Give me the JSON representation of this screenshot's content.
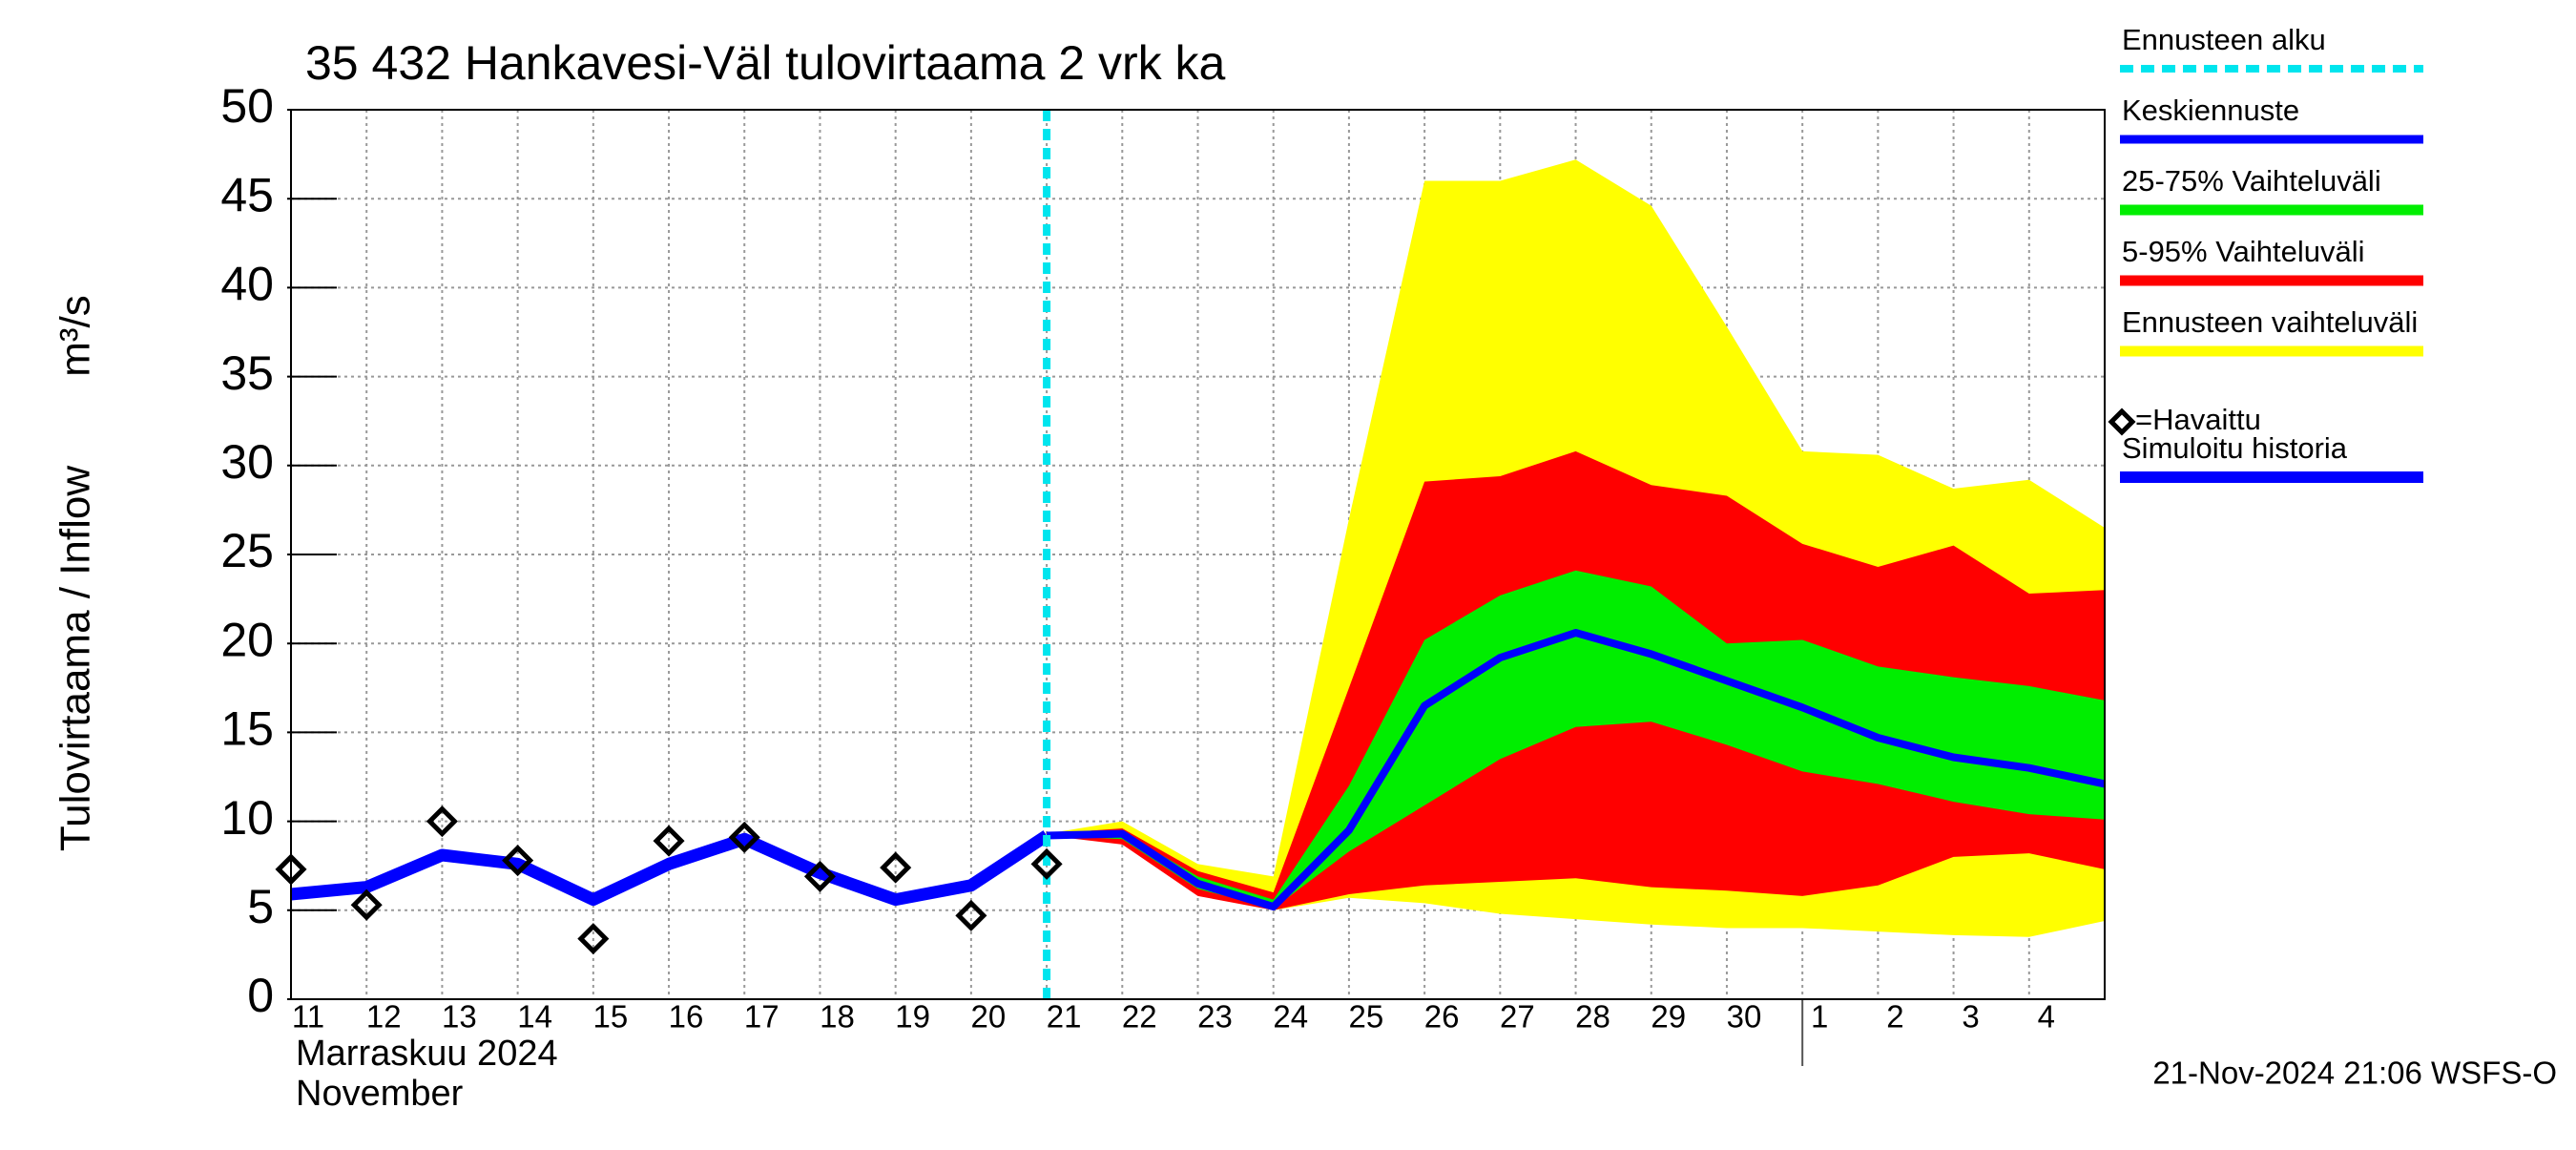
{
  "chart_data": {
    "type": "line",
    "title": "35 432 Hankavesi-Väl tulovirtaama 2 vrk ka",
    "y_label": "Tulovirtaama / Inflow",
    "y_unit": "m³/s",
    "month_labels": [
      "Marraskuu 2024",
      "November"
    ],
    "timestamp": "21-Nov-2024 21:06 WSFS-O",
    "categories": [
      "11",
      "12",
      "13",
      "14",
      "15",
      "16",
      "17",
      "18",
      "19",
      "20",
      "21",
      "22",
      "23",
      "24",
      "25",
      "26",
      "27",
      "28",
      "29",
      "30",
      "1",
      "2",
      "3",
      "4",
      null
    ],
    "ylim": [
      0,
      50
    ],
    "yticks": [
      0,
      5,
      10,
      15,
      20,
      25,
      30,
      35,
      40,
      45,
      50
    ],
    "grid": true,
    "forecast_start": {
      "name": "Ennusteen alku",
      "color": "#00e5ee",
      "index": 10
    },
    "bands": [
      {
        "name": "Ennusteen vaihteluväli",
        "color": "#ffff00",
        "upper": [
          null,
          null,
          null,
          null,
          null,
          null,
          null,
          null,
          null,
          null,
          9.3,
          10.0,
          7.6,
          6.9,
          27,
          46,
          46,
          47.2,
          44.6,
          37.8,
          30.8,
          30.6,
          28.7,
          29.2,
          26.5
        ],
        "lower": [
          null,
          null,
          null,
          null,
          null,
          null,
          null,
          null,
          null,
          null,
          9.2,
          8.9,
          6.0,
          5.0,
          5.7,
          5.4,
          4.8,
          4.5,
          4.2,
          4.0,
          4.0,
          3.8,
          3.6,
          3.5,
          4.4
        ]
      },
      {
        "name": "5-95% Vaihteluväli",
        "color": "#ff0000",
        "upper": [
          null,
          null,
          null,
          null,
          null,
          null,
          null,
          null,
          null,
          null,
          9.3,
          9.6,
          7.2,
          6.0,
          17.5,
          29.1,
          29.4,
          30.8,
          28.9,
          28.3,
          25.6,
          24.3,
          25.5,
          22.8,
          23.0
        ],
        "lower": [
          null,
          null,
          null,
          null,
          null,
          null,
          null,
          null,
          null,
          null,
          9.2,
          8.7,
          5.8,
          5.0,
          5.9,
          6.4,
          6.6,
          6.8,
          6.3,
          6.1,
          5.8,
          6.4,
          8.0,
          8.2,
          7.3
        ]
      },
      {
        "name": "25-75% Vaihteluväli",
        "color": "#00ee00",
        "upper": [
          null,
          null,
          null,
          null,
          null,
          null,
          null,
          null,
          null,
          null,
          9.3,
          9.4,
          6.9,
          5.6,
          12.0,
          20.2,
          22.7,
          24.1,
          23.2,
          20.0,
          20.2,
          18.7,
          18.1,
          17.6,
          16.8
        ],
        "lower": [
          null,
          null,
          null,
          null,
          null,
          null,
          null,
          null,
          null,
          null,
          9.2,
          9.0,
          6.2,
          5.1,
          8.3,
          10.9,
          13.5,
          15.3,
          15.6,
          14.3,
          12.8,
          12.1,
          11.1,
          10.4,
          10.1
        ]
      }
    ],
    "series": [
      {
        "name": "Keskiennuste",
        "color": "#0000ff",
        "values": [
          null,
          null,
          null,
          null,
          null,
          null,
          null,
          null,
          null,
          null,
          9.2,
          9.3,
          6.5,
          5.2,
          9.5,
          16.5,
          19.2,
          20.6,
          19.4,
          17.9,
          16.4,
          14.7,
          13.6,
          13.0,
          12.1
        ]
      },
      {
        "name": "Simuloitu historia",
        "color": "#0000ff",
        "values": [
          5.9,
          6.3,
          8.1,
          7.6,
          5.6,
          7.6,
          9.0,
          7.1,
          5.6,
          6.4,
          9.2,
          null,
          null,
          null,
          null,
          null,
          null,
          null,
          null,
          null,
          null,
          null,
          null,
          null,
          null
        ]
      },
      {
        "name": "=Havaittu",
        "color": "#000000",
        "marker": "diamond",
        "values": [
          7.3,
          5.3,
          10.0,
          7.8,
          3.4,
          8.9,
          9.1,
          6.9,
          7.4,
          4.7,
          7.6,
          null,
          null,
          null,
          null,
          null,
          null,
          null,
          null,
          null,
          null,
          null,
          null,
          null,
          null
        ]
      }
    ]
  }
}
